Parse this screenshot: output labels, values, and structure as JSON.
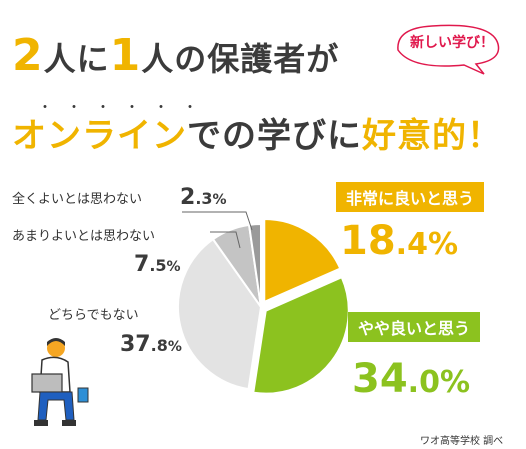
{
  "headline": {
    "line1": [
      "2",
      "人に",
      "1",
      "人の保護者が"
    ],
    "emphasis_dots": "・・・・・・",
    "line2": [
      "オンライン",
      "での学びに",
      "好意的！"
    ]
  },
  "bubble": {
    "text": "新しい学び！",
    "stroke": "#e0184c"
  },
  "colors": {
    "accent_yellow": "#f0b400",
    "accent_green": "#8cc21f",
    "very_bad": "#9a9a9a",
    "bad": "#c4c4c4",
    "neutral": "#e3e3e3"
  },
  "chart_data": {
    "type": "pie",
    "title": "",
    "slices": [
      {
        "label": "非常に良いと思う",
        "value": 18.4,
        "int": "18",
        "dec": ".4",
        "color": "#f0b400"
      },
      {
        "label": "やや良いと思う",
        "value": 34.0,
        "int": "34",
        "dec": ".0",
        "color": "#8cc21f"
      },
      {
        "label": "どちらでもない",
        "value": 37.8,
        "int": "37",
        "dec": ".8",
        "color": "#e3e3e3"
      },
      {
        "label": "あまりよいとは思わない",
        "value": 7.5,
        "int": "7",
        "dec": ".5",
        "color": "#c4c4c4"
      },
      {
        "label": "全くよいとは思わない",
        "value": 2.3,
        "int": "2",
        "dec": ".3",
        "color": "#9a9a9a"
      }
    ],
    "unit": "%"
  },
  "source": "ワオ高等学校 調べ"
}
